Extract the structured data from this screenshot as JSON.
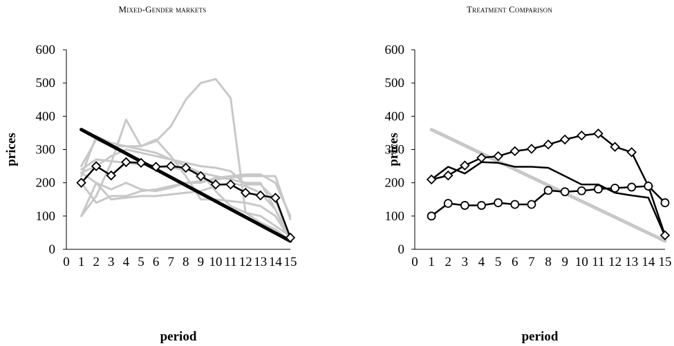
{
  "charts": [
    {
      "type": "line",
      "title": "Mixed-Gender markets",
      "xlabel": "period",
      "ylabel": "prices",
      "ylim": [
        0,
        600
      ],
      "yticks": [
        0,
        100,
        200,
        300,
        400,
        500,
        600
      ],
      "xticks": [
        0,
        1,
        2,
        3,
        4,
        5,
        6,
        7,
        8,
        9,
        10,
        11,
        12,
        13,
        14,
        15
      ],
      "xticklabels": [
        "0",
        "1",
        "2",
        "3",
        "4",
        "5",
        "6",
        "7",
        "8",
        "9",
        "10",
        "11",
        "12",
        "13",
        "14",
        "15"
      ],
      "grid": false,
      "legend": "none",
      "series": [
        {
          "color": "#c8c8c8",
          "style": "gray",
          "x": [
            1,
            2,
            3,
            4,
            5,
            6,
            7,
            8,
            9,
            10,
            11,
            12,
            13,
            14,
            15
          ],
          "y": [
            100,
            160,
            260,
            390,
            310,
            330,
            280,
            220,
            150,
            150,
            145,
            140,
            130,
            100,
            30
          ]
        },
        {
          "color": "#c8c8c8",
          "style": "gray",
          "x": [
            1,
            2,
            3,
            4,
            5,
            6,
            7,
            8,
            9,
            10,
            11,
            12,
            13,
            14,
            15
          ],
          "y": [
            220,
            340,
            320,
            310,
            310,
            325,
            370,
            450,
            500,
            512,
            455,
            110,
            80,
            60,
            25
          ]
        },
        {
          "color": "#c8c8c8",
          "style": "gray",
          "x": [
            1,
            2,
            3,
            4,
            5,
            6,
            7,
            8,
            9,
            10,
            11,
            12,
            13,
            14,
            15
          ],
          "y": [
            240,
            270,
            265,
            260,
            255,
            250,
            245,
            240,
            230,
            220,
            210,
            200,
            200,
            120,
            25
          ]
        },
        {
          "color": "#c8c8c8",
          "style": "gray",
          "x": [
            1,
            2,
            3,
            4,
            5,
            6,
            7,
            8,
            9,
            10,
            11,
            12,
            13,
            14,
            15
          ],
          "y": [
            230,
            250,
            280,
            300,
            290,
            280,
            270,
            260,
            250,
            245,
            235,
            195,
            195,
            150,
            30
          ]
        },
        {
          "color": "#c8c8c8",
          "style": "gray",
          "x": [
            1,
            2,
            3,
            4,
            5,
            6,
            7,
            8,
            9,
            10,
            11,
            12,
            13,
            14,
            15
          ],
          "y": [
            100,
            200,
            150,
            155,
            160,
            160,
            165,
            170,
            175,
            190,
            200,
            190,
            170,
            120,
            35
          ]
        },
        {
          "color": "#c8c8c8",
          "style": "gray",
          "x": [
            1,
            2,
            3,
            4,
            5,
            6,
            7,
            8,
            9,
            10,
            11,
            12,
            13,
            14,
            15
          ],
          "y": [
            200,
            140,
            160,
            160,
            175,
            180,
            190,
            200,
            205,
            210,
            215,
            220,
            220,
            220,
            90
          ]
        },
        {
          "color": "#c8c8c8",
          "style": "gray",
          "x": [
            1,
            2,
            3,
            4,
            5,
            6,
            7,
            8,
            9,
            10,
            11,
            12,
            13,
            14,
            15
          ],
          "y": [
            230,
            200,
            180,
            200,
            180,
            175,
            185,
            200,
            200,
            215,
            220,
            225,
            225,
            200,
            100
          ]
        },
        {
          "color": "#c8c8c8",
          "style": "gray",
          "x": [
            1,
            2,
            3,
            4,
            5,
            6,
            7,
            8,
            9,
            10,
            11,
            12,
            13,
            14,
            15
          ],
          "y": [
            250,
            330,
            310,
            310,
            300,
            290,
            270,
            250,
            230,
            175,
            130,
            110,
            100,
            70,
            40
          ]
        },
        {
          "color": "#000000",
          "style": "thick",
          "x": [
            1,
            15
          ],
          "y": [
            360,
            25
          ]
        },
        {
          "color": "#000000",
          "style": "diamond",
          "x": [
            1,
            2,
            3,
            4,
            5,
            6,
            7,
            8,
            9,
            10,
            11,
            12,
            13,
            14,
            15
          ],
          "y": [
            200,
            250,
            222,
            262,
            260,
            248,
            250,
            245,
            220,
            195,
            195,
            170,
            162,
            155,
            35
          ]
        }
      ]
    },
    {
      "type": "line",
      "title": "Treatment Comparison",
      "xlabel": "period",
      "ylabel": "prices",
      "ylim": [
        0,
        600
      ],
      "yticks": [
        0,
        100,
        200,
        300,
        400,
        500,
        600
      ],
      "xticks": [
        0,
        1,
        2,
        3,
        4,
        5,
        6,
        7,
        8,
        9,
        10,
        11,
        12,
        13,
        14,
        15
      ],
      "xticklabels": [
        "0",
        "1",
        "2",
        "3",
        "4",
        "5",
        "6",
        "7",
        "8",
        "9",
        "10",
        "11",
        "12",
        "13",
        "14",
        "15"
      ],
      "grid": false,
      "legend": "none",
      "series": [
        {
          "color": "#c8c8c8",
          "style": "thick",
          "x": [
            1,
            15
          ],
          "y": [
            360,
            25
          ]
        },
        {
          "color": "#000000",
          "style": "plain",
          "x": [
            1,
            2,
            3,
            4,
            5,
            6,
            7,
            8,
            9,
            10,
            11,
            12,
            13,
            14,
            15
          ],
          "y": [
            210,
            248,
            228,
            262,
            260,
            248,
            248,
            245,
            220,
            195,
            195,
            170,
            162,
            155,
            40
          ]
        },
        {
          "color": "#000000",
          "style": "diamond",
          "x": [
            1,
            2,
            3,
            4,
            5,
            6,
            7,
            8,
            9,
            10,
            11,
            12,
            13,
            14,
            15
          ],
          "y": [
            210,
            222,
            252,
            275,
            280,
            295,
            302,
            315,
            330,
            342,
            348,
            308,
            292,
            190,
            42
          ]
        },
        {
          "color": "#000000",
          "style": "circle",
          "x": [
            1,
            2,
            3,
            4,
            5,
            6,
            7,
            8,
            9,
            10,
            11,
            12,
            13,
            14,
            15
          ],
          "y": [
            100,
            138,
            132,
            132,
            140,
            135,
            135,
            177,
            173,
            176,
            181,
            184,
            187,
            190,
            140
          ]
        }
      ]
    }
  ]
}
